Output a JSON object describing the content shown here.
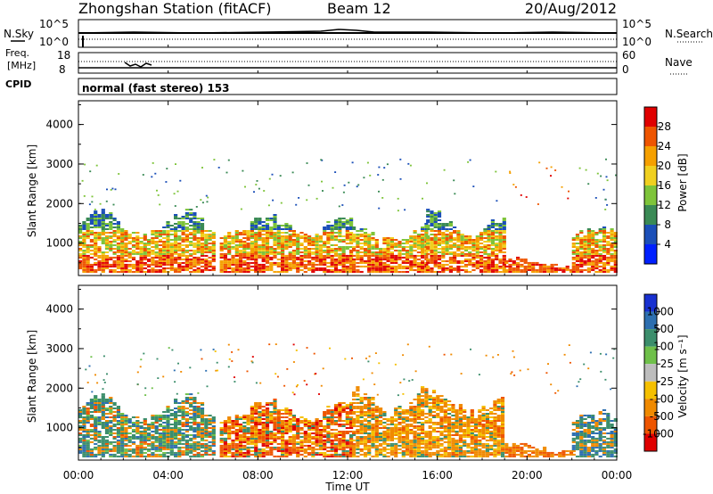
{
  "header": {
    "station": "Zhongshan Station (fitACF)",
    "beam": "Beam 12",
    "date": "20/Aug/2012",
    "cpid_label": "CPID",
    "cpid_value": "normal (fast stereo) 153"
  },
  "params": {
    "nsky_label": "N.Sky",
    "nsky_ticks": [
      "10^5",
      "10^0"
    ],
    "nsearch_label": "N.Search",
    "nsearch_ticks": [
      "10^5",
      "10^0"
    ],
    "freq_label_line1": "Freq.",
    "freq_label_line2": "[MHz]",
    "freq_ticks": [
      "18",
      "8"
    ],
    "nave_label": "Nave",
    "nave_ticks": [
      "60",
      "0"
    ]
  },
  "x_axis": {
    "label": "Time UT",
    "ticks": [
      "00:00",
      "04:00",
      "08:00",
      "12:00",
      "16:00",
      "20:00",
      "00:00"
    ]
  },
  "y_axis": {
    "label": "Slant Range [km]",
    "ticks": [
      "1000",
      "2000",
      "3000",
      "4000"
    ]
  },
  "power_scale": {
    "label": "Power [dB]",
    "ticks": [
      "4",
      "8",
      "12",
      "16",
      "20",
      "24",
      "28"
    ],
    "colors": [
      "#0020ff",
      "#1b4fb8",
      "#3a8a55",
      "#7ec43a",
      "#f0d020",
      "#f5a000",
      "#ee5500",
      "#e00000"
    ]
  },
  "velocity_scale": {
    "label": "Velocity [m s⁻¹]",
    "ticks": [
      "1000",
      "500",
      "100",
      "25",
      "-25",
      "-100",
      "-500",
      "-1000"
    ],
    "colors": [
      "#1830d0",
      "#2d6fb0",
      "#3c8e6c",
      "#6fc04a",
      "#bdbdbd",
      "#f5c000",
      "#f08a00",
      "#ee5500",
      "#e00000"
    ]
  },
  "chart_data": [
    {
      "type": "heatmap",
      "title": "Power",
      "xlabel": "Time UT",
      "ylabel": "Slant Range [km]",
      "xlim": [
        "00:00",
        "24:00"
      ],
      "ylim": [
        180,
        4600
      ],
      "colorbar": {
        "label": "Power [dB]",
        "ticks": [
          4,
          8,
          12,
          16,
          20,
          24,
          28
        ]
      },
      "scatter_regions": [
        {
          "t_start": 0.0,
          "t_end": 6.0,
          "range_km": [
            250,
            1800
          ],
          "typical_power_db": [
            8,
            28
          ]
        },
        {
          "t_start": 6.3,
          "t_end": 12.2,
          "range_km": [
            250,
            1700
          ],
          "typical_power_db": [
            8,
            28
          ]
        },
        {
          "t_start": 12.2,
          "t_end": 15.5,
          "range_km": [
            250,
            1500
          ],
          "typical_power_db": [
            8,
            28
          ]
        },
        {
          "t_start": 15.5,
          "t_end": 19.0,
          "range_km": [
            250,
            1800
          ],
          "typical_power_db": [
            8,
            28
          ]
        },
        {
          "t_start": 19.0,
          "t_end": 22.0,
          "range_km": [
            250,
            600
          ],
          "typical_power_db": [
            16,
            28
          ]
        },
        {
          "t_start": 22.0,
          "t_end": 24.0,
          "range_km": [
            250,
            1400
          ],
          "typical_power_db": [
            8,
            28
          ]
        }
      ]
    },
    {
      "type": "heatmap",
      "title": "Velocity",
      "xlabel": "Time UT",
      "ylabel": "Slant Range [km]",
      "xlim": [
        "00:00",
        "24:00"
      ],
      "ylim": [
        180,
        4600
      ],
      "colorbar": {
        "label": "Velocity [m s⁻¹]",
        "ticks": [
          1000,
          500,
          100,
          25,
          -25,
          -100,
          -500,
          -1000
        ]
      },
      "scatter_regions": [
        {
          "t_start": 0.0,
          "t_end": 6.0,
          "range_km": [
            250,
            1800
          ],
          "typical_velocity": [
            -1000,
            500
          ]
        },
        {
          "t_start": 6.3,
          "t_end": 12.2,
          "range_km": [
            250,
            1700
          ],
          "typical_velocity": [
            -1000,
            100
          ]
        },
        {
          "t_start": 12.2,
          "t_end": 19.0,
          "range_km": [
            250,
            2000
          ],
          "typical_velocity": [
            -500,
            -100
          ]
        },
        {
          "t_start": 19.0,
          "t_end": 22.0,
          "range_km": [
            250,
            600
          ],
          "typical_velocity": [
            -500,
            -100
          ]
        },
        {
          "t_start": 22.0,
          "t_end": 24.0,
          "range_km": [
            250,
            1400
          ],
          "typical_velocity": [
            -100,
            500
          ]
        }
      ]
    }
  ]
}
